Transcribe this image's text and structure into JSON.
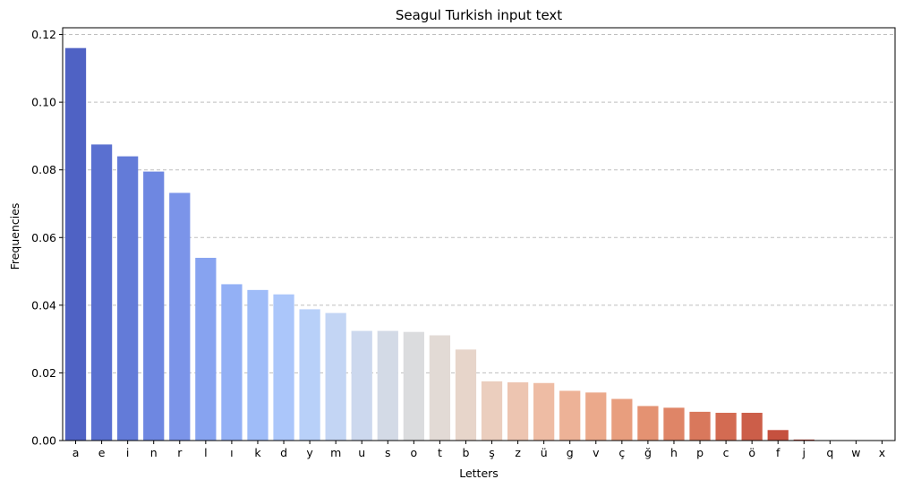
{
  "chart_data": {
    "type": "bar",
    "title": "Seagul Turkish input text",
    "xlabel": "Letters",
    "ylabel": "Frequencies",
    "ylim": [
      0,
      0.122
    ],
    "yticks": [
      "0.00",
      "0.02",
      "0.04",
      "0.06",
      "0.08",
      "0.10",
      "0.12"
    ],
    "grid": "y-dashed",
    "categories": [
      "a",
      "e",
      "i",
      "n",
      "r",
      "l",
      "ı",
      "k",
      "d",
      "y",
      "m",
      "u",
      "s",
      "o",
      "t",
      "b",
      "ş",
      "z",
      "ü",
      "g",
      "v",
      "ç",
      "ğ",
      "h",
      "p",
      "c",
      "ö",
      "f",
      "j",
      "q",
      "w",
      "x"
    ],
    "values": [
      0.116,
      0.0875,
      0.084,
      0.0795,
      0.0732,
      0.054,
      0.0462,
      0.0445,
      0.0432,
      0.0388,
      0.0377,
      0.0324,
      0.0324,
      0.0321,
      0.0311,
      0.0269,
      0.0175,
      0.0172,
      0.017,
      0.0147,
      0.0142,
      0.0123,
      0.0102,
      0.0097,
      0.0085,
      0.0082,
      0.0082,
      0.0031,
      0.0003,
      0.0,
      0.0,
      0.0
    ],
    "colors": [
      "#4f62c4",
      "#5a70d0",
      "#637bd8",
      "#6e87e1",
      "#7b94e9",
      "#87a3f0",
      "#93b0f5",
      "#9fbcf8",
      "#abc6fa",
      "#b8d0f9",
      "#c3d5f4",
      "#ccd8ee",
      "#d3dae6",
      "#dbdcde",
      "#e2dad5",
      "#e7d5ca",
      "#ebcebe",
      "#edc5b1",
      "#eebca4",
      "#edb297",
      "#eba98b",
      "#e89e7e",
      "#e49272",
      "#df8567",
      "#d9785c",
      "#d36b52",
      "#cc5e49",
      "#c5513f",
      "#be4336",
      "#b6362e",
      "#ad2826",
      "#a3171f"
    ]
  }
}
